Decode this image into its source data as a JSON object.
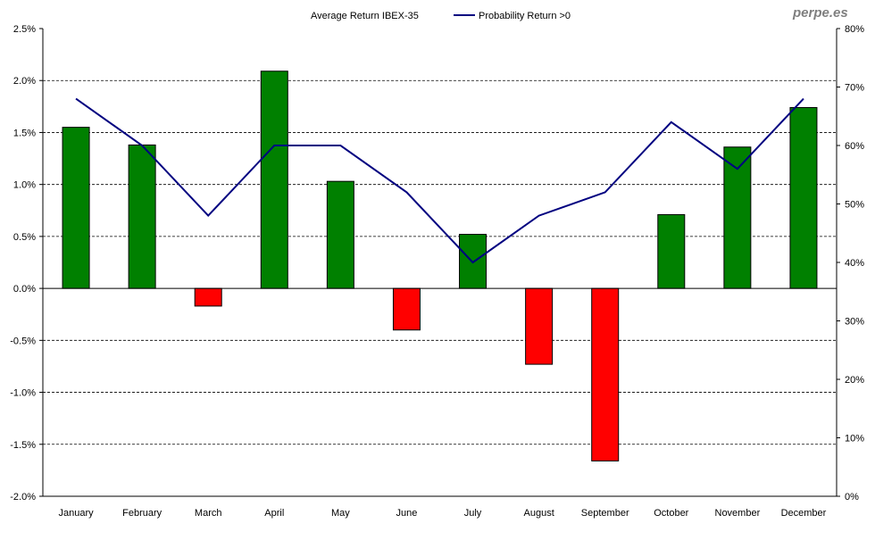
{
  "chart_data": {
    "type": "bar",
    "title": "",
    "watermark": "perpe.es",
    "categories": [
      "January",
      "February",
      "March",
      "April",
      "May",
      "June",
      "July",
      "August",
      "September",
      "October",
      "November",
      "December"
    ],
    "series": [
      {
        "name": "Average Return IBEX-35",
        "type": "bar",
        "axis": "left",
        "unit": "%",
        "values": [
          1.55,
          1.38,
          -0.17,
          2.09,
          1.03,
          -0.4,
          0.52,
          -0.73,
          -1.66,
          0.71,
          1.36,
          1.74
        ],
        "positive_color": "#008000",
        "negative_color": "#ff0000"
      },
      {
        "name": "Probability Return >0",
        "type": "line",
        "axis": "right",
        "unit": "%",
        "values": [
          68,
          60,
          48,
          60,
          60,
          52,
          40,
          48,
          52,
          64,
          56,
          68
        ],
        "color": "#000080"
      }
    ],
    "left_axis": {
      "range": [
        -2.0,
        2.5
      ],
      "ticks": [
        "-2.0%",
        "-1.5%",
        "-1.0%",
        "-0.5%",
        "0.0%",
        "0.5%",
        "1.0%",
        "1.5%",
        "2.0%",
        "2.5%"
      ]
    },
    "right_axis": {
      "range": [
        0,
        80
      ],
      "ticks": [
        "0%",
        "10%",
        "20%",
        "30%",
        "40%",
        "50%",
        "60%",
        "70%",
        "80%"
      ]
    },
    "legend": {
      "placement": "top",
      "items": [
        "Average Return IBEX-35",
        "Probability Return >0"
      ]
    },
    "grid": true
  }
}
